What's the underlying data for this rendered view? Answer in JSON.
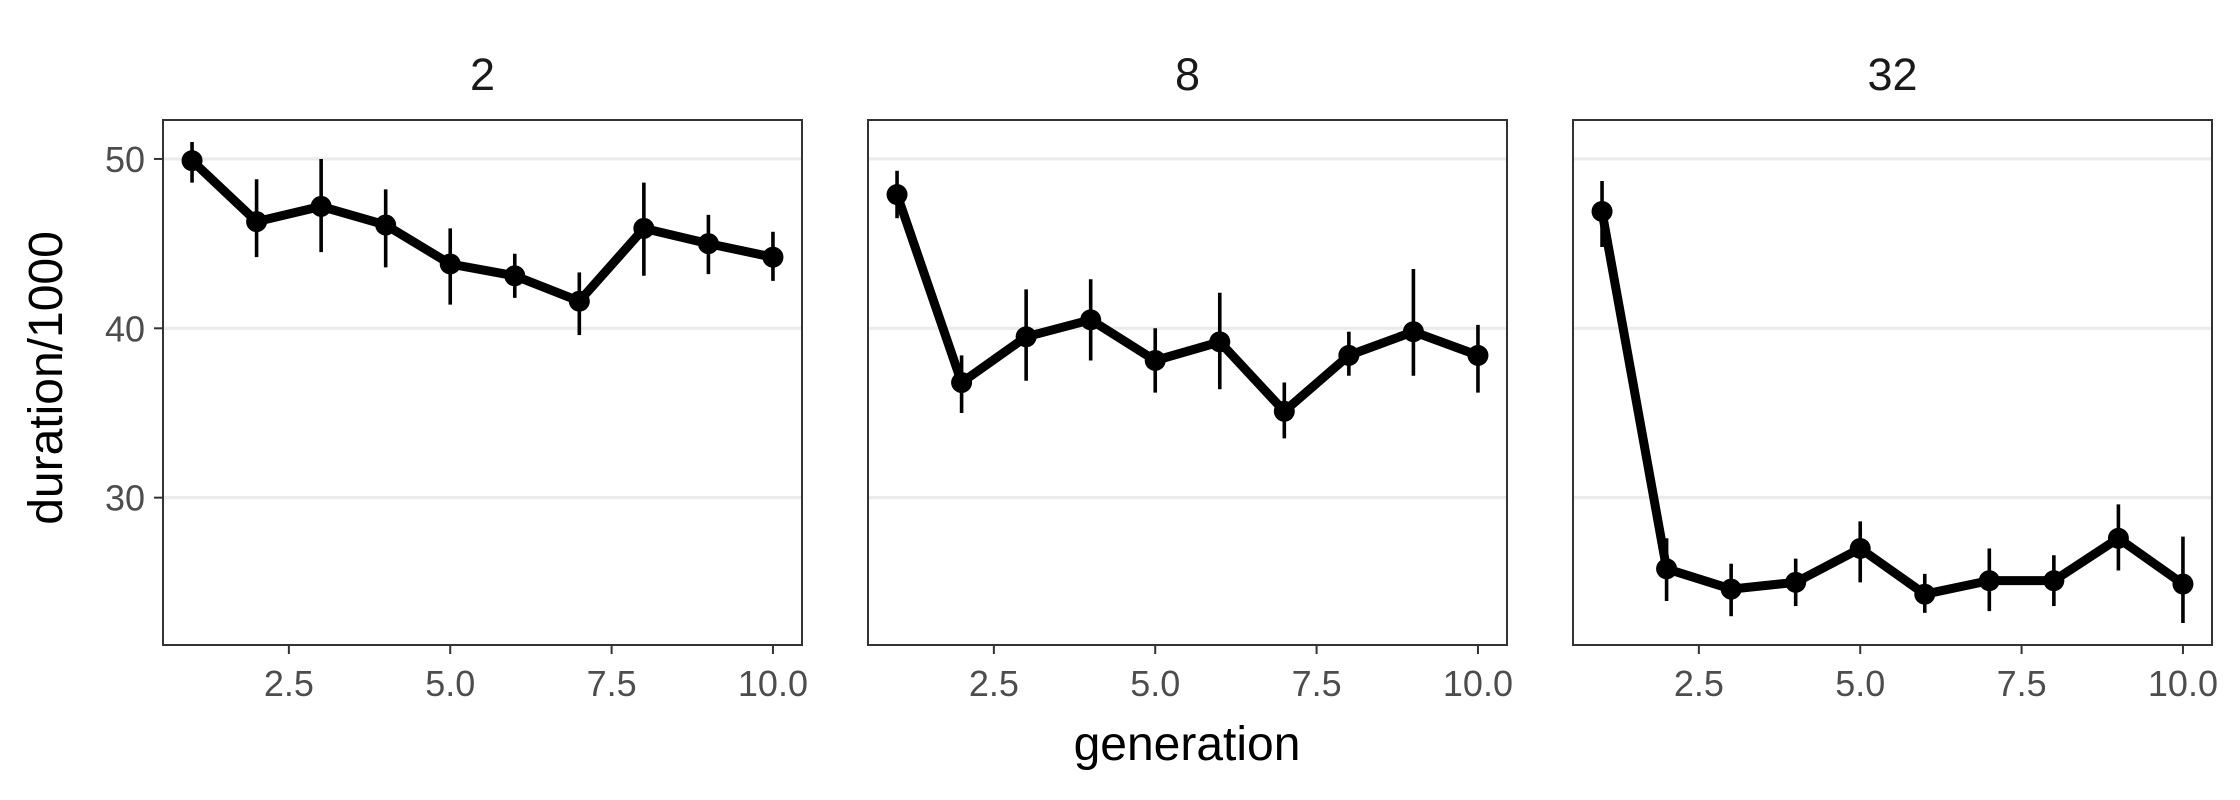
{
  "chart_data": {
    "type": "line",
    "xlabel": "generation",
    "ylabel": "duration/1000",
    "xlim": [
      0.55,
      10.45
    ],
    "ylim": [
      21.3,
      52.3
    ],
    "x_ticks": [
      2.5,
      5.0,
      7.5,
      10.0
    ],
    "x_tick_labels": [
      "2.5",
      "5.0",
      "7.5",
      "10.0"
    ],
    "y_ticks": [
      30,
      40,
      50
    ],
    "y_tick_labels": [
      "30",
      "40",
      "50"
    ],
    "grid": "major-y",
    "facets": [
      {
        "label": "2",
        "x": [
          1,
          2,
          3,
          4,
          5,
          6,
          7,
          8,
          9,
          10
        ],
        "y": [
          49.9,
          46.3,
          47.2,
          46.1,
          43.8,
          43.1,
          41.6,
          45.9,
          45.0,
          44.2
        ],
        "ymin": [
          48.6,
          44.2,
          44.5,
          43.6,
          41.4,
          41.8,
          39.6,
          43.1,
          43.2,
          42.8
        ],
        "ymax": [
          51.0,
          48.8,
          50.0,
          48.2,
          45.9,
          44.4,
          43.3,
          48.6,
          46.7,
          45.7
        ]
      },
      {
        "label": "8",
        "x": [
          1,
          2,
          3,
          4,
          5,
          6,
          7,
          8,
          9,
          10
        ],
        "y": [
          47.9,
          36.8,
          39.5,
          40.5,
          38.1,
          39.2,
          35.1,
          38.4,
          39.8,
          38.4
        ],
        "ymin": [
          46.5,
          35.0,
          36.9,
          38.1,
          36.2,
          36.4,
          33.5,
          37.2,
          37.2,
          36.2
        ],
        "ymax": [
          49.3,
          38.4,
          42.3,
          42.9,
          40.0,
          42.1,
          36.8,
          39.8,
          43.5,
          40.2
        ]
      },
      {
        "label": "32",
        "x": [
          1,
          2,
          3,
          4,
          5,
          6,
          7,
          8,
          9,
          10
        ],
        "y": [
          46.9,
          25.8,
          24.6,
          25.0,
          27.0,
          24.3,
          25.1,
          25.1,
          27.6,
          24.9
        ],
        "ymin": [
          44.8,
          23.9,
          23.0,
          23.6,
          25.0,
          23.2,
          23.3,
          23.6,
          25.7,
          22.6
        ],
        "ymax": [
          48.7,
          27.6,
          26.1,
          26.4,
          28.6,
          25.5,
          27.0,
          26.6,
          29.6,
          27.7
        ]
      }
    ]
  }
}
